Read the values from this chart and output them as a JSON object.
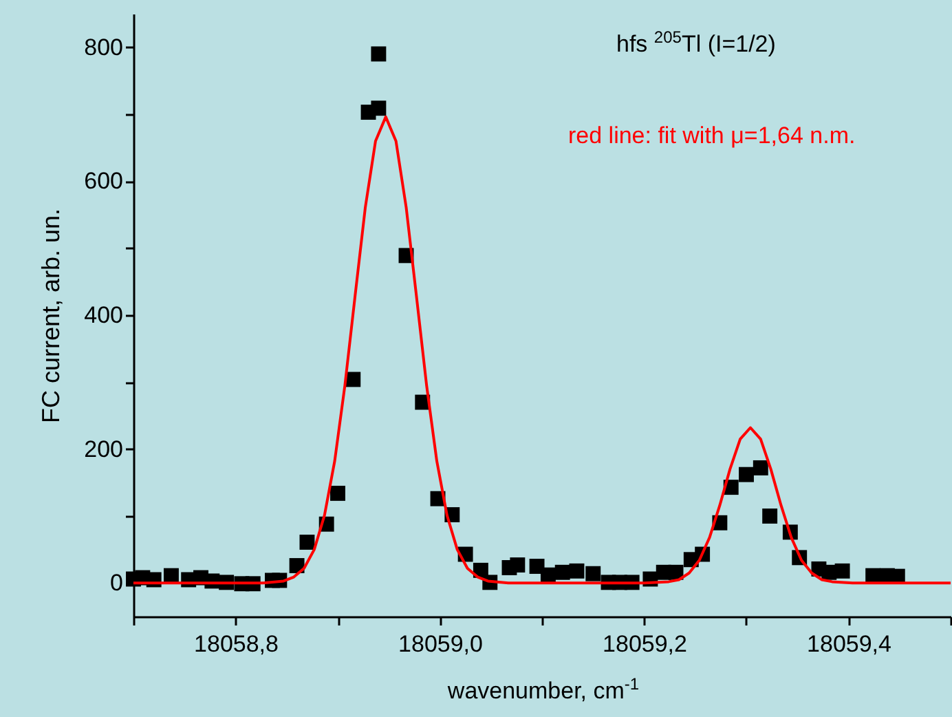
{
  "chart_data": {
    "type": "scatter",
    "title": "hfs $^{205}$Tl (I=1/2)",
    "xlabel": "wavenumber, cm$^{-1}$",
    "ylabel": "FC current, arb. un.",
    "annotations": [
      "red line: fit with μ=1,64 n.m."
    ],
    "xlim": [
      18058.7,
      18059.5
    ],
    "xticks": [
      {
        "value": 18058.7,
        "label": null
      },
      {
        "value": 18058.8,
        "label": "18058,8"
      },
      {
        "value": 18058.9,
        "label": null
      },
      {
        "value": 18059.0,
        "label": "18059,0"
      },
      {
        "value": 18059.1,
        "label": null
      },
      {
        "value": 18059.2,
        "label": "18059,2"
      },
      {
        "value": 18059.3,
        "label": null
      },
      {
        "value": 18059.4,
        "label": "18059,4"
      },
      {
        "value": 18059.5,
        "label": null
      }
    ],
    "ylim": [
      -50,
      850
    ],
    "yticks": [
      0,
      {
        "value": 100,
        "label": null
      },
      200,
      {
        "value": 300,
        "label": null
      },
      400,
      {
        "value": 500,
        "label": null
      },
      600,
      {
        "value": 700,
        "label": null
      },
      800
    ],
    "grid": false,
    "series": [
      {
        "marker": "square",
        "color": "#000000",
        "x": [
          18058.7,
          18058.709,
          18058.72,
          18058.737,
          18058.754,
          18058.766,
          18058.777,
          18058.791,
          18058.806,
          18058.817,
          18058.836,
          18058.843,
          18058.86,
          18058.87,
          18058.889,
          18058.9,
          18058.915,
          18058.93,
          18058.94,
          18058.94,
          18058.967,
          18058.983,
          18058.998,
          18059.012,
          18059.025,
          18059.04,
          18059.049,
          18059.068,
          18059.076,
          18059.095,
          18059.106,
          18059.12,
          18059.134,
          18059.15,
          18059.165,
          18059.176,
          18059.188,
          18059.206,
          18059.219,
          18059.231,
          18059.246,
          18059.257,
          18059.274,
          18059.285,
          18059.3,
          18059.314,
          18059.323,
          18059.343,
          18059.352,
          18059.371,
          18059.381,
          18059.394,
          18059.424,
          18059.438,
          18059.448
        ],
        "values": [
          6,
          8,
          5,
          11,
          5,
          8,
          3,
          1,
          -1,
          -1,
          4,
          4,
          26,
          61,
          88,
          134,
          304,
          703,
          709,
          790,
          489,
          270,
          126,
          102,
          43,
          19,
          1,
          23,
          27,
          25,
          12,
          16,
          18,
          14,
          1,
          1,
          1,
          6,
          16,
          16,
          35,
          43,
          90,
          143,
          162,
          172,
          100,
          76,
          38,
          21,
          16,
          18,
          11,
          11,
          10
        ]
      },
      {
        "type": "line",
        "color": "#ff0000",
        "x": [
          18058.7,
          18058.8,
          18058.827,
          18058.847,
          18058.857,
          18058.867,
          18058.877,
          18058.887,
          18058.897,
          18058.907,
          18058.917,
          18058.927,
          18058.937,
          18058.947,
          18058.957,
          18058.967,
          18058.977,
          18058.987,
          18058.997,
          18059.007,
          18059.017,
          18059.027,
          18059.037,
          18059.047,
          18059.067,
          18059.2,
          18059.224,
          18059.234,
          18059.244,
          18059.254,
          18059.264,
          18059.274,
          18059.284,
          18059.294,
          18059.304,
          18059.314,
          18059.324,
          18059.334,
          18059.344,
          18059.354,
          18059.364,
          18059.374,
          18059.384,
          18059.404,
          18059.5
        ],
        "values": [
          0,
          0,
          0,
          3,
          9,
          22,
          50,
          101,
          182,
          295,
          429,
          561,
          660,
          696,
          660,
          561,
          429,
          295,
          182,
          101,
          50,
          22,
          9,
          3,
          0,
          0,
          2,
          5,
          15,
          34,
          68,
          116,
          170,
          215,
          232,
          215,
          170,
          116,
          68,
          34,
          15,
          5,
          2,
          0,
          0
        ]
      }
    ]
  }
}
